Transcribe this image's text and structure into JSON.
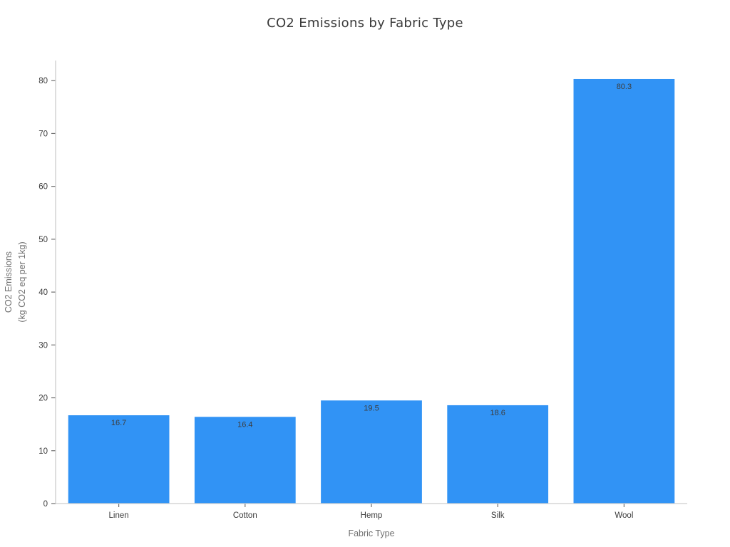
{
  "chart_data": {
    "type": "bar",
    "title": "CO2 Emissions by Fabric Type",
    "categories": [
      "Linen",
      "Cotton",
      "Hemp",
      "Silk",
      "Wool"
    ],
    "values": [
      16.7,
      16.4,
      19.5,
      18.6,
      80.3
    ],
    "value_labels": [
      "16.7",
      "16.4",
      "19.5",
      "18.6",
      "80.3"
    ],
    "xlabel": "Fabric Type",
    "ylabel_lines": [
      "CO2 Emissions",
      "(kg CO2 eq per 1kg)"
    ],
    "yticks": [
      0,
      10,
      20,
      30,
      40,
      50,
      60,
      70,
      80
    ],
    "ylim": [
      0,
      83.8
    ],
    "grid": false,
    "legend": null,
    "colors": {
      "bar": "#3193f5",
      "title_text": "#3a3a3a",
      "tick_label_text": "#3a3a3a",
      "value_label_text": "#3d3d3d",
      "axis_label_text": "#707070",
      "spine": "#cdcdcd",
      "tick_mark": "#6e6e6e",
      "background": "#ffffff"
    }
  }
}
